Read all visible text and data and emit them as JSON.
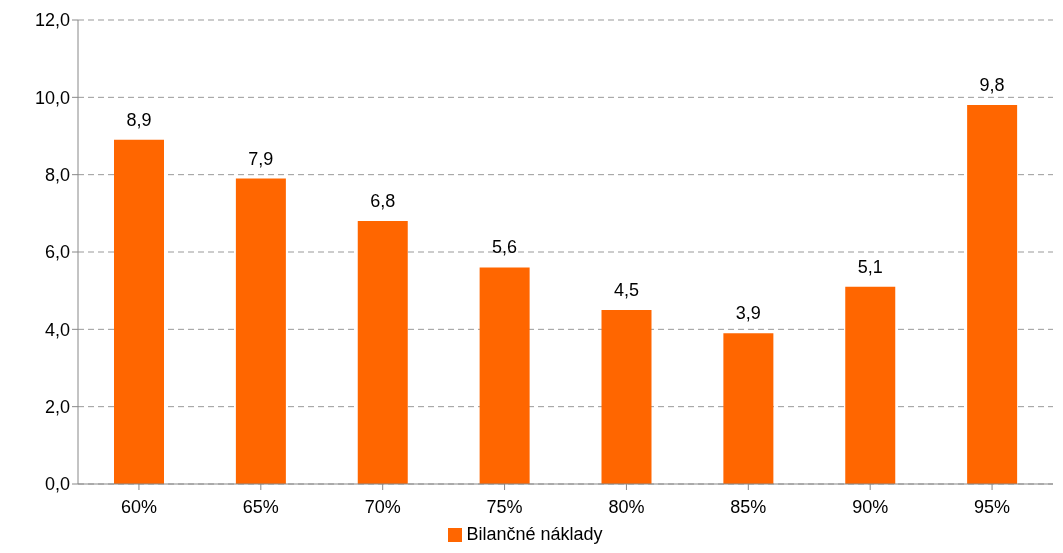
{
  "chart_data": {
    "type": "bar",
    "categories": [
      "60%",
      "65%",
      "70%",
      "75%",
      "80%",
      "85%",
      "90%",
      "95%"
    ],
    "series": [
      {
        "name": "Bilančné náklady",
        "color": "#ff6600",
        "values": [
          8.9,
          7.9,
          6.8,
          5.6,
          4.5,
          3.9,
          5.1,
          9.8
        ],
        "value_labels": [
          "8,9",
          "7,9",
          "6,8",
          "5,6",
          "4,5",
          "3,9",
          "5,1",
          "9,8"
        ]
      }
    ],
    "ylim": [
      0,
      12
    ],
    "yticks": [
      {
        "value": 0,
        "label": "0,0"
      },
      {
        "value": 2,
        "label": "2,0"
      },
      {
        "value": 4,
        "label": "4,0"
      },
      {
        "value": 6,
        "label": "6,0"
      },
      {
        "value": 8,
        "label": "8,0"
      },
      {
        "value": 10,
        "label": "10,0"
      },
      {
        "value": 12,
        "label": "12,0"
      }
    ],
    "grid": "y",
    "legend": "bottom"
  }
}
